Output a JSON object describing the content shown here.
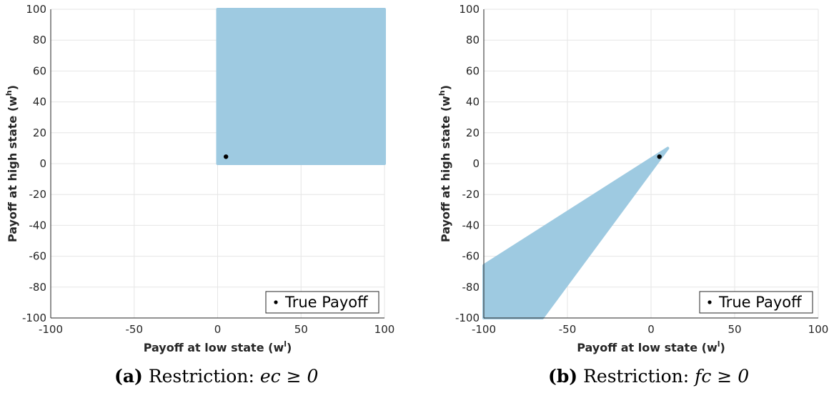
{
  "chart_data": [
    {
      "type": "area",
      "xlabel": "Payoff at low state (w",
      "xlabel_sup": "l",
      "xlabel_close": ")",
      "ylabel": "Payoff at high state (w",
      "ylabel_sup": "h",
      "ylabel_close": ")",
      "xlim": [
        -100,
        100
      ],
      "ylim": [
        -100,
        100
      ],
      "xticks": [
        "-100",
        "-50",
        "0",
        "50",
        "100"
      ],
      "yticks": [
        "100",
        "80",
        "60",
        "40",
        "20",
        "0",
        "-20",
        "-40",
        "-60",
        "-80",
        "-100"
      ],
      "grid": true,
      "region_color": "#9ecae1",
      "region": [
        [
          0,
          100
        ],
        [
          100,
          100
        ],
        [
          100,
          0
        ],
        [
          0,
          0
        ]
      ],
      "point": {
        "label": "True Payoff",
        "x": 5,
        "y": 4.5
      },
      "legend": {
        "label": "True Payoff",
        "position": "bottom-right"
      },
      "caption": {
        "tag": "(a)",
        "text": "Restriction:",
        "math": "ec ≥ 0"
      }
    },
    {
      "type": "area",
      "xlabel": "Payoff at low state (w",
      "xlabel_sup": "l",
      "xlabel_close": ")",
      "ylabel": "Payoff at high state (w",
      "ylabel_sup": "h",
      "ylabel_close": ")",
      "xlim": [
        -100,
        100
      ],
      "ylim": [
        -100,
        100
      ],
      "xticks": [
        "-100",
        "-50",
        "0",
        "50",
        "100"
      ],
      "yticks": [
        "100",
        "80",
        "60",
        "40",
        "20",
        "0",
        "-20",
        "-40",
        "-60",
        "-80",
        "-100"
      ],
      "grid": true,
      "region_color": "#9ecae1",
      "region": [
        [
          -100,
          -66
        ],
        [
          10,
          10
        ],
        [
          -65,
          -100
        ],
        [
          -100,
          -100
        ]
      ],
      "point": {
        "label": "True Payoff",
        "x": 5,
        "y": 4.5
      },
      "legend": {
        "label": "True Payoff",
        "position": "bottom-right"
      },
      "caption": {
        "tag": "(b)",
        "text": "Restriction:",
        "math": "fc ≥ 0"
      }
    }
  ]
}
